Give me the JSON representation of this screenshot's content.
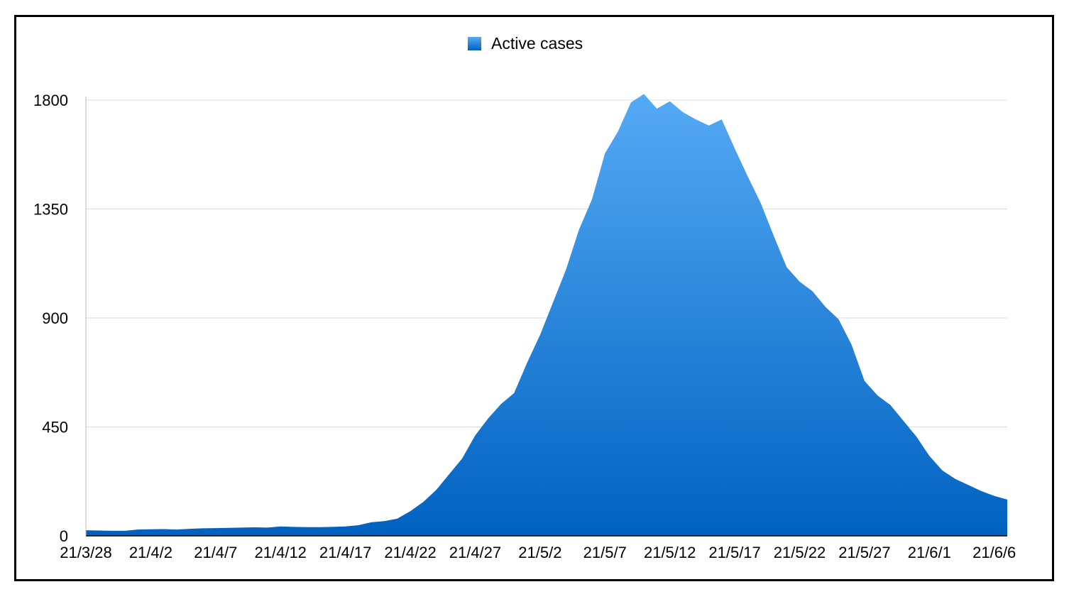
{
  "chart_data": {
    "type": "area",
    "title": "",
    "xlabel": "",
    "ylabel": "",
    "ylim": [
      0,
      1800
    ],
    "grid": true,
    "legend_position": "top-center",
    "y_ticks": [
      "0",
      "450",
      "900",
      "1350",
      "1800"
    ],
    "x_ticks": [
      "21/3/28",
      "21/4/2",
      "21/4/7",
      "21/4/12",
      "21/4/17",
      "21/4/22",
      "21/4/27",
      "21/5/2",
      "21/5/7",
      "21/5/12",
      "21/5/17",
      "21/5/22",
      "21/5/27",
      "21/6/1",
      "21/6/6"
    ],
    "colors": {
      "area_top": "#55AAF4",
      "area_bottom": "#0062C0",
      "grid": "#DDDDDD",
      "axis": "#000000"
    },
    "x": [
      "21/3/28",
      "21/3/29",
      "21/3/30",
      "21/3/31",
      "21/4/1",
      "21/4/2",
      "21/4/3",
      "21/4/4",
      "21/4/5",
      "21/4/6",
      "21/4/7",
      "21/4/8",
      "21/4/9",
      "21/4/10",
      "21/4/11",
      "21/4/12",
      "21/4/13",
      "21/4/14",
      "21/4/15",
      "21/4/16",
      "21/4/17",
      "21/4/18",
      "21/4/19",
      "21/4/20",
      "21/4/21",
      "21/4/22",
      "21/4/23",
      "21/4/24",
      "21/4/25",
      "21/4/26",
      "21/4/27",
      "21/4/28",
      "21/4/29",
      "21/4/30",
      "21/5/1",
      "21/5/2",
      "21/5/3",
      "21/5/4",
      "21/5/5",
      "21/5/6",
      "21/5/7",
      "21/5/8",
      "21/5/9",
      "21/5/10",
      "21/5/11",
      "21/5/12",
      "21/5/13",
      "21/5/14",
      "21/5/15",
      "21/5/16",
      "21/5/17",
      "21/5/18",
      "21/5/19",
      "21/5/20",
      "21/5/21",
      "21/5/22",
      "21/5/23",
      "21/5/24",
      "21/5/25",
      "21/5/26",
      "21/5/27",
      "21/5/28",
      "21/5/29",
      "21/5/30",
      "21/5/31",
      "21/6/1",
      "21/6/2",
      "21/6/3",
      "21/6/4",
      "21/6/5",
      "21/6/6",
      "21/6/7"
    ],
    "series": [
      {
        "name": "Active cases",
        "values": [
          23,
          22,
          21,
          21,
          26,
          27,
          28,
          26,
          29,
          31,
          32,
          33,
          34,
          35,
          34,
          39,
          37,
          36,
          36,
          37,
          39,
          44,
          56,
          61,
          71,
          102,
          140,
          190,
          255,
          320,
          415,
          485,
          545,
          590,
          715,
          830,
          965,
          1100,
          1265,
          1390,
          1580,
          1670,
          1790,
          1825,
          1765,
          1795,
          1750,
          1720,
          1695,
          1720,
          1600,
          1485,
          1375,
          1240,
          1110,
          1050,
          1010,
          945,
          895,
          790,
          640,
          580,
          540,
          475,
          410,
          330,
          270,
          235,
          210,
          185,
          165,
          150
        ]
      }
    ]
  }
}
